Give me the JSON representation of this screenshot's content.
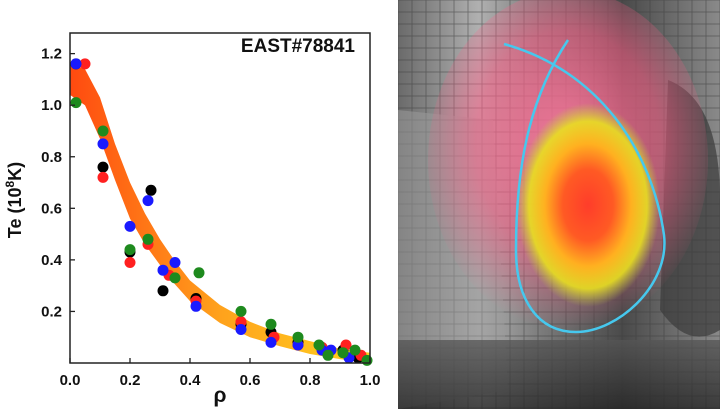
{
  "chart_data": {
    "type": "scatter",
    "title": "EAST#78841",
    "xlabel": "ρ",
    "ylabel": {
      "base": "Te (10",
      "exp": "8",
      "tail": "K)"
    },
    "xlim": [
      0.0,
      1.0
    ],
    "ylim": [
      0.0,
      1.28
    ],
    "xticks": [
      "0.0",
      "0.2",
      "0.4",
      "0.6",
      "0.8",
      "1.0"
    ],
    "yticks": [
      "0.2",
      "0.4",
      "0.6",
      "0.8",
      "1.0",
      "1.2"
    ],
    "grid": false,
    "fit_band": {
      "colors": [
        "#ff4a10",
        "#ffa21c",
        "#ffd21f"
      ],
      "points": [
        {
          "x": 0.0,
          "y": 1.1,
          "w": 0.06
        },
        {
          "x": 0.05,
          "y": 1.07,
          "w": 0.07
        },
        {
          "x": 0.1,
          "y": 0.95,
          "w": 0.08
        },
        {
          "x": 0.15,
          "y": 0.78,
          "w": 0.07
        },
        {
          "x": 0.2,
          "y": 0.63,
          "w": 0.07
        },
        {
          "x": 0.25,
          "y": 0.52,
          "w": 0.06
        },
        {
          "x": 0.3,
          "y": 0.43,
          "w": 0.05
        },
        {
          "x": 0.35,
          "y": 0.35,
          "w": 0.045
        },
        {
          "x": 0.4,
          "y": 0.28,
          "w": 0.04
        },
        {
          "x": 0.5,
          "y": 0.19,
          "w": 0.035
        },
        {
          "x": 0.6,
          "y": 0.13,
          "w": 0.03
        },
        {
          "x": 0.7,
          "y": 0.09,
          "w": 0.025
        },
        {
          "x": 0.8,
          "y": 0.06,
          "w": 0.025
        },
        {
          "x": 0.9,
          "y": 0.035,
          "w": 0.02
        },
        {
          "x": 1.0,
          "y": 0.02,
          "w": 0.02
        }
      ]
    },
    "series": [
      {
        "color": "#000000",
        "points": [
          [
            0.02,
            1.16
          ],
          [
            0.11,
            0.76
          ],
          [
            0.2,
            0.43
          ],
          [
            0.27,
            0.67
          ],
          [
            0.31,
            0.28
          ],
          [
            0.42,
            0.25
          ],
          [
            0.57,
            0.15
          ],
          [
            0.67,
            0.12
          ],
          [
            0.76,
            0.08
          ],
          [
            0.84,
            0.06
          ],
          [
            0.91,
            0.05
          ],
          [
            0.96,
            0.02
          ]
        ]
      },
      {
        "color": "#ff2020",
        "points": [
          [
            0.05,
            1.16
          ],
          [
            0.11,
            0.72
          ],
          [
            0.2,
            0.39
          ],
          [
            0.26,
            0.46
          ],
          [
            0.33,
            0.34
          ],
          [
            0.42,
            0.24
          ],
          [
            0.57,
            0.16
          ],
          [
            0.68,
            0.1
          ],
          [
            0.76,
            0.07
          ],
          [
            0.84,
            0.06
          ],
          [
            0.92,
            0.07
          ],
          [
            0.97,
            0.03
          ]
        ]
      },
      {
        "color": "#1a1aff",
        "points": [
          [
            0.02,
            1.16
          ],
          [
            0.11,
            0.85
          ],
          [
            0.2,
            0.53
          ],
          [
            0.26,
            0.63
          ],
          [
            0.31,
            0.36
          ],
          [
            0.35,
            0.39
          ],
          [
            0.42,
            0.22
          ],
          [
            0.57,
            0.13
          ],
          [
            0.67,
            0.08
          ],
          [
            0.76,
            0.07
          ],
          [
            0.84,
            0.05
          ],
          [
            0.87,
            0.05
          ],
          [
            0.93,
            0.02
          ]
        ]
      },
      {
        "color": "#1e8a1e",
        "points": [
          [
            0.02,
            1.01
          ],
          [
            0.11,
            0.9
          ],
          [
            0.2,
            0.44
          ],
          [
            0.26,
            0.48
          ],
          [
            0.35,
            0.33
          ],
          [
            0.43,
            0.35
          ],
          [
            0.57,
            0.2
          ],
          [
            0.67,
            0.15
          ],
          [
            0.76,
            0.1
          ],
          [
            0.83,
            0.07
          ],
          [
            0.86,
            0.03
          ],
          [
            0.91,
            0.04
          ],
          [
            0.95,
            0.05
          ],
          [
            0.99,
            0.01
          ]
        ]
      }
    ]
  },
  "photo": {
    "wall_color": "#8f8f8f",
    "glow_color": "#ff5d86",
    "core_color": "#ff3d2a",
    "separatrix_color": "#46c8ee"
  }
}
